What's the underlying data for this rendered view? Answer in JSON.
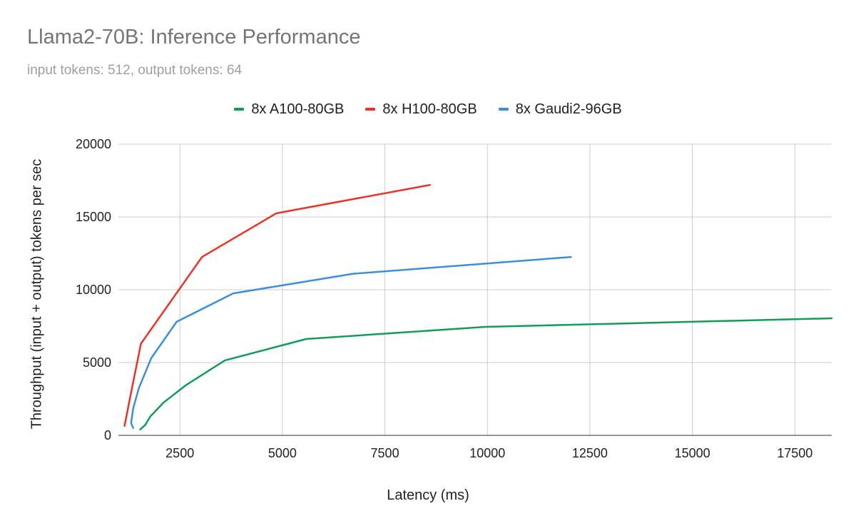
{
  "chart_data": {
    "type": "line",
    "title": "Llama2-70B: Inference Performance",
    "subtitle": "input tokens: 512, output tokens: 64",
    "xlabel": "Latency (ms)",
    "ylabel": "Throughput (input + output) tokens per sec",
    "xlim": [
      1000,
      18400
    ],
    "ylim": [
      0,
      20000
    ],
    "xticks": [
      2500,
      5000,
      7500,
      10000,
      12500,
      15000,
      17500
    ],
    "yticks": [
      0,
      5000,
      10000,
      15000,
      20000
    ],
    "grid": true,
    "legend_position": "top",
    "series": [
      {
        "name": "8x A100-80GB",
        "color": "#0f9d58",
        "points": [
          [
            1530,
            400
          ],
          [
            1650,
            700
          ],
          [
            1780,
            1300
          ],
          [
            2100,
            2250
          ],
          [
            2650,
            3450
          ],
          [
            3600,
            5150
          ],
          [
            5580,
            6620
          ],
          [
            9950,
            7450
          ],
          [
            18400,
            8040
          ]
        ]
      },
      {
        "name": "8x H100-80GB",
        "color": "#ea3323",
        "points": [
          [
            1150,
            650
          ],
          [
            1320,
            3100
          ],
          [
            1550,
            6300
          ],
          [
            3040,
            12250
          ],
          [
            4850,
            15250
          ],
          [
            8600,
            17200
          ]
        ]
      },
      {
        "name": "8x Gaudi2-96GB",
        "color": "#3b8ddd",
        "points": [
          [
            1360,
            500
          ],
          [
            1310,
            850
          ],
          [
            1360,
            1850
          ],
          [
            1500,
            3250
          ],
          [
            1800,
            5300
          ],
          [
            2420,
            7800
          ],
          [
            3800,
            9750
          ],
          [
            6720,
            11100
          ],
          [
            12040,
            12250
          ]
        ]
      }
    ]
  }
}
